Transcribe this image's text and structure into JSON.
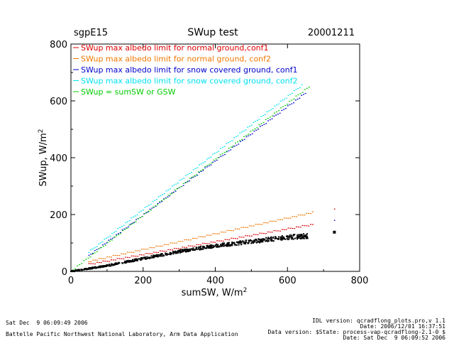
{
  "header": {
    "site": "sgpE15",
    "title": "SWup test",
    "date": "20001211"
  },
  "chart_data": {
    "type": "scatter",
    "xlabel": "sumSW, W/m",
    "xlabel_sup": "2",
    "ylabel": "SWup, W/m",
    "ylabel_sup": "2",
    "xlim": [
      0,
      800
    ],
    "ylim": [
      0,
      800
    ],
    "xticks": [
      "0",
      "200",
      "400",
      "600",
      "800"
    ],
    "yticks": [
      "0",
      "200",
      "400",
      "600",
      "800"
    ],
    "grid": false,
    "legend_position": "top-left",
    "series": [
      {
        "name": "SWup max albedo limit for normal ground,conf1",
        "color": "#dd0000",
        "kind": "line",
        "x": [
          50,
          670
        ],
        "y": [
          25,
          165
        ]
      },
      {
        "name": "SWup max albedo limit for normal ground, conf2",
        "color": "#ee7700",
        "kind": "line",
        "x": [
          50,
          670
        ],
        "y": [
          35,
          207
        ]
      },
      {
        "name": "SWup max albedo limit for snow covered ground, conf1",
        "color": "#0000cc",
        "kind": "line",
        "x": [
          50,
          650
        ],
        "y": [
          55,
          627
        ]
      },
      {
        "name": "SWup max albedo limit for snow covered ground, conf2",
        "color": "#00e0ee",
        "kind": "line",
        "x": [
          50,
          640
        ],
        "y": [
          68,
          655
        ]
      },
      {
        "name": "SWup = sumSW or GSW",
        "color": "#00cc00",
        "kind": "line",
        "x": [
          0,
          660
        ],
        "y": [
          0,
          650
        ]
      },
      {
        "name": "",
        "color": "#000000",
        "kind": "band",
        "x": [
          0,
          100,
          200,
          300,
          400,
          500,
          600,
          660
        ],
        "y": [
          0,
          20,
          45,
          70,
          90,
          105,
          120,
          125
        ]
      },
      {
        "name": "",
        "color": "#000000",
        "kind": "points",
        "x": [
          730
        ],
        "y": [
          138
        ]
      },
      {
        "name": "",
        "color": "#dd0000",
        "kind": "points",
        "x": [
          730
        ],
        "y": [
          220
        ]
      },
      {
        "name": "",
        "color": "#0000cc",
        "kind": "points",
        "x": [
          730
        ],
        "y": [
          180
        ]
      }
    ]
  },
  "footer": {
    "left_date": "Sat Dec  9 06:09:49 2006",
    "left_org": "Battelle Pacific Northwest National Laboratory, Arm Data Application",
    "right_lines": [
      "IDL version: qcradflong_plots.pro,v 1.1",
      "Date: 2006/12/01 16:37:51",
      "Data version: $State: process-vap-qcradflong-2.1-0 $",
      "Date: Sat Dec  9 06:09:52 2006"
    ]
  }
}
